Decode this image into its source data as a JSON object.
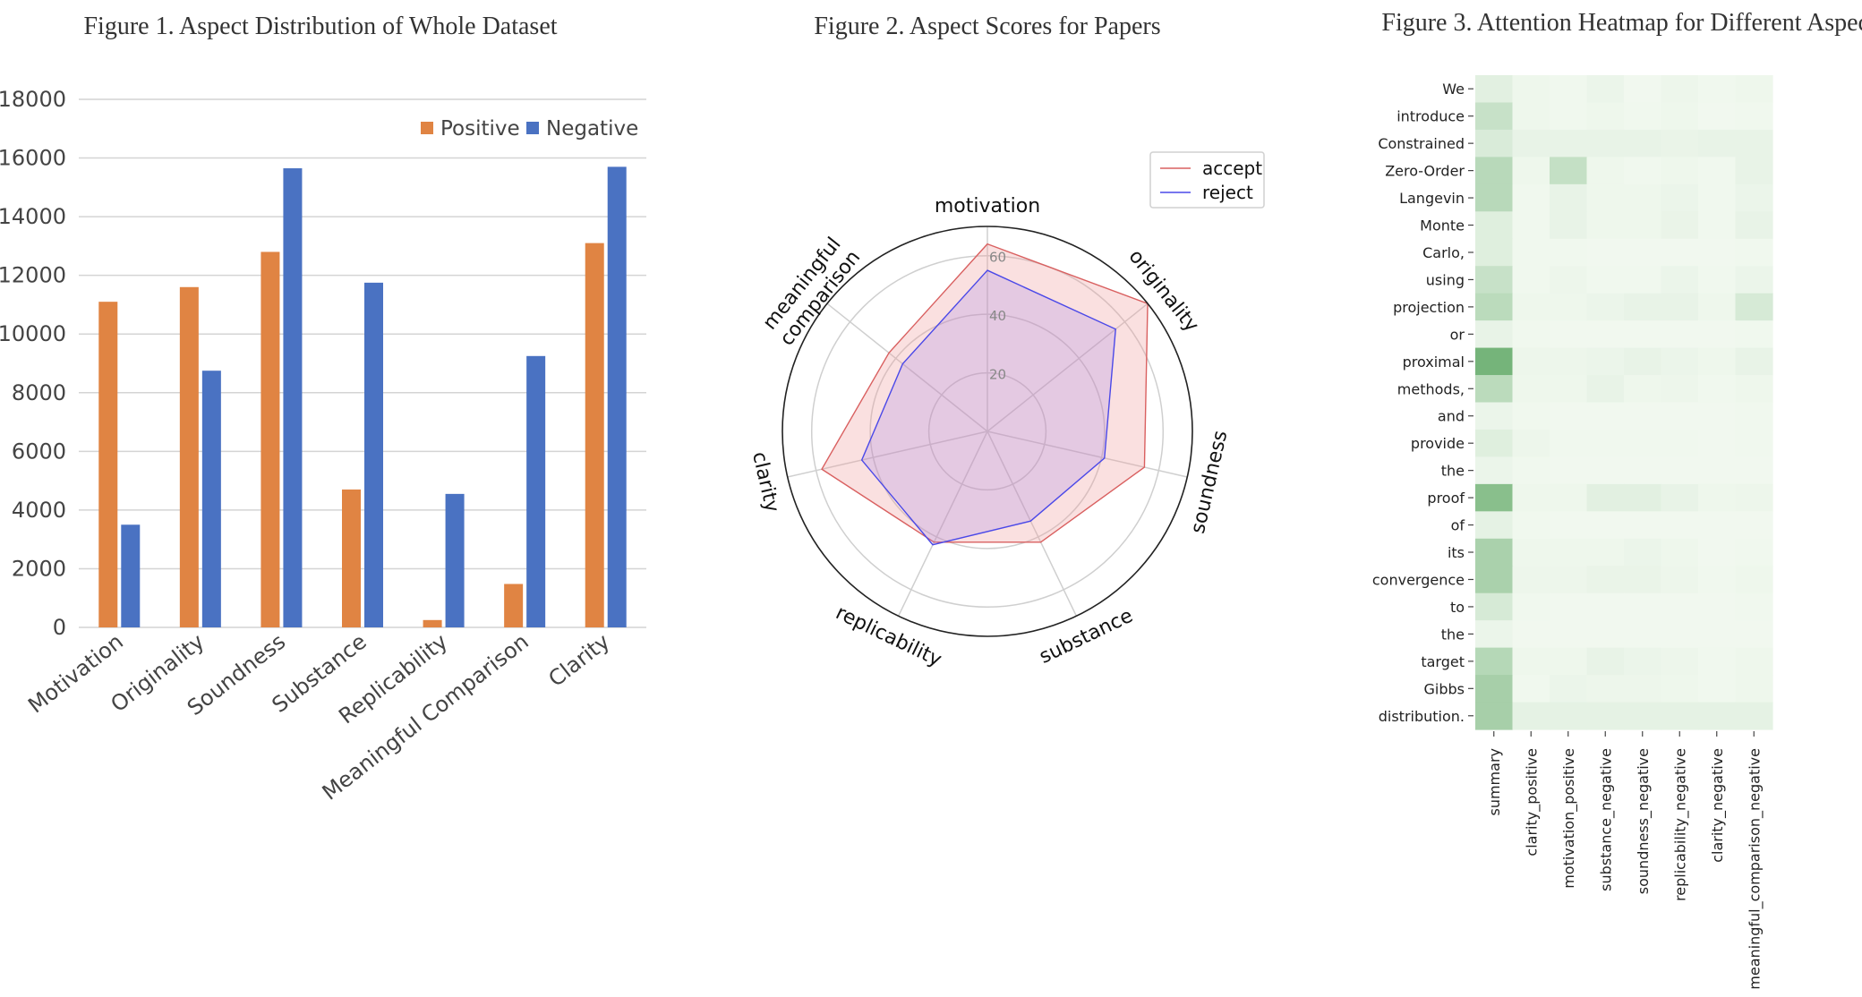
{
  "colors": {
    "positive": "#e08443",
    "negative": "#4a72c2",
    "accept": "#d96060",
    "reject": "#4a48e8",
    "grid": "#d4d4d4",
    "heat_low": "#f4faf2",
    "heat_high": "#5fa865"
  },
  "chart_data": [
    {
      "type": "bar",
      "title": "Figure 1. Aspect Distribution of Whole Dataset",
      "categories": [
        "Motivation",
        "Originality",
        "Soundness",
        "Substance",
        "Replicability",
        "Meaningful Comparison",
        "Clarity"
      ],
      "series": [
        {
          "name": "Positive",
          "values": [
            11100,
            11600,
            12800,
            4700,
            250,
            1480,
            13100
          ]
        },
        {
          "name": "Negative",
          "values": [
            3500,
            8750,
            15650,
            11750,
            4550,
            9250,
            15700
          ]
        }
      ],
      "ylim": [
        0,
        18000
      ],
      "yticks": [
        "0",
        "2000",
        "4000",
        "6000",
        "8000",
        "10000",
        "12000",
        "14000",
        "16000",
        "18000"
      ],
      "grid": true,
      "legend": "top-right"
    },
    {
      "type": "radar",
      "title": "Figure 2. Aspect Scores for Papers",
      "axes": [
        "motivation",
        "originality",
        "soundness",
        "substance",
        "replicability",
        "clarity",
        "meaningful\ncomparison"
      ],
      "series": [
        {
          "name": "accept",
          "values": [
            64,
            70,
            55,
            42,
            42,
            58,
            43
          ]
        },
        {
          "name": "reject",
          "values": [
            55,
            56,
            41,
            34,
            43,
            44,
            37
          ]
        }
      ],
      "rlim": [
        0,
        70
      ],
      "rticks": [
        "20",
        "40",
        "60"
      ],
      "legend": "top-right"
    },
    {
      "type": "heatmap",
      "title": "Figure 3. Attention Heatmap for Different Aspects",
      "rows": [
        "We",
        "introduce",
        "Constrained",
        "Zero-Order",
        "Langevin",
        "Monte",
        "Carlo,",
        "using",
        "projection",
        "or",
        "proximal",
        "methods,",
        "and",
        "provide",
        "the",
        "proof",
        "of",
        "its",
        "convergence",
        "to",
        "the",
        "target",
        "Gibbs",
        "distribution."
      ],
      "columns": [
        "summary",
        "clarity_positive",
        "motivation_positive",
        "substance_negative",
        "soundness_negative",
        "replicability_negative",
        "clarity_negative",
        "meaningful_comparison_negative"
      ],
      "values": [
        [
          0.12,
          0.04,
          0.03,
          0.06,
          0.02,
          0.05,
          0.03,
          0.04
        ],
        [
          0.3,
          0.04,
          0.03,
          0.04,
          0.03,
          0.04,
          0.02,
          0.03
        ],
        [
          0.18,
          0.08,
          0.08,
          0.08,
          0.08,
          0.07,
          0.08,
          0.08
        ],
        [
          0.4,
          0.04,
          0.32,
          0.04,
          0.03,
          0.04,
          0.03,
          0.08
        ],
        [
          0.4,
          0.03,
          0.08,
          0.04,
          0.04,
          0.06,
          0.03,
          0.06
        ],
        [
          0.14,
          0.03,
          0.08,
          0.04,
          0.04,
          0.07,
          0.03,
          0.08
        ],
        [
          0.14,
          0.03,
          0.03,
          0.02,
          0.02,
          0.02,
          0.02,
          0.03
        ],
        [
          0.3,
          0.03,
          0.05,
          0.03,
          0.03,
          0.06,
          0.03,
          0.06
        ],
        [
          0.38,
          0.04,
          0.04,
          0.06,
          0.08,
          0.08,
          0.04,
          0.2
        ],
        [
          0.08,
          0.03,
          0.02,
          0.02,
          0.02,
          0.02,
          0.02,
          0.03
        ],
        [
          0.85,
          0.05,
          0.05,
          0.06,
          0.08,
          0.06,
          0.04,
          0.08
        ],
        [
          0.38,
          0.04,
          0.04,
          0.08,
          0.04,
          0.05,
          0.03,
          0.04
        ],
        [
          0.06,
          0.03,
          0.02,
          0.02,
          0.02,
          0.02,
          0.02,
          0.03
        ],
        [
          0.14,
          0.05,
          0.03,
          0.03,
          0.03,
          0.03,
          0.02,
          0.03
        ],
        [
          0.06,
          0.03,
          0.02,
          0.02,
          0.02,
          0.02,
          0.02,
          0.02
        ],
        [
          0.72,
          0.04,
          0.04,
          0.12,
          0.12,
          0.08,
          0.04,
          0.05
        ],
        [
          0.1,
          0.03,
          0.02,
          0.02,
          0.02,
          0.02,
          0.02,
          0.02
        ],
        [
          0.5,
          0.04,
          0.04,
          0.04,
          0.06,
          0.04,
          0.02,
          0.03
        ],
        [
          0.5,
          0.05,
          0.05,
          0.07,
          0.07,
          0.05,
          0.03,
          0.04
        ],
        [
          0.2,
          0.03,
          0.02,
          0.02,
          0.02,
          0.02,
          0.02,
          0.03
        ],
        [
          0.06,
          0.02,
          0.02,
          0.02,
          0.02,
          0.02,
          0.02,
          0.02
        ],
        [
          0.42,
          0.04,
          0.04,
          0.08,
          0.06,
          0.05,
          0.03,
          0.04
        ],
        [
          0.52,
          0.03,
          0.06,
          0.05,
          0.05,
          0.04,
          0.03,
          0.04
        ],
        [
          0.52,
          0.1,
          0.1,
          0.1,
          0.1,
          0.1,
          0.1,
          0.1
        ]
      ]
    }
  ]
}
